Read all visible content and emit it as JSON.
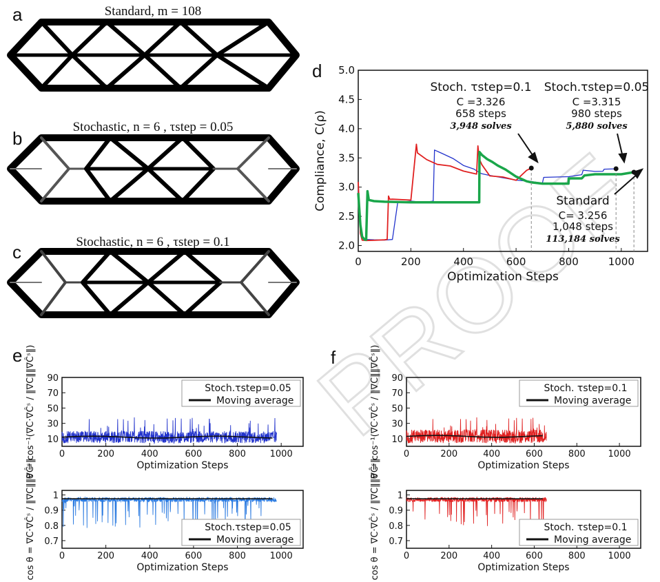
{
  "panel_labels": {
    "a": "a",
    "b": "b",
    "c": "c",
    "d": "d",
    "e": "e",
    "f": "f"
  },
  "titles": {
    "a": "Standard, m = 108",
    "b": "Stochastic, n = 6 , τstep = 0.05",
    "c": "Stochastic, n = 6 , τstep = 0.1"
  },
  "watermark": "PROOF",
  "annotations": {
    "tau01": {
      "head": "Stoch. τstep=0.1",
      "c": "C =3.326",
      "steps": "658 steps",
      "solves": "3,948 solves"
    },
    "tau005": {
      "head": "Stoch.τstep=0.05",
      "c": "C =3.315",
      "steps": "980 steps",
      "solves": "5,880 solves"
    },
    "standard": {
      "head": "Standard",
      "c": "C= 3.256",
      "steps": "1,048 steps",
      "solves": "113,184 solves"
    }
  },
  "colors": {
    "standard": "#1aa64a",
    "tau005": "#2233cc",
    "tau01": "#e02020",
    "tau005_light": "#2a7ae0",
    "avg": "#111111"
  },
  "chart_data": [
    {
      "type": "line",
      "id": "d",
      "xlabel": "Optimization Steps",
      "ylabel": "Compliance, C(ρ)",
      "xlim": [
        0,
        1100
      ],
      "ylim": [
        1.9,
        5.0
      ],
      "xticks": [
        0,
        200,
        400,
        600,
        800,
        1000
      ],
      "yticks": [
        2.0,
        2.5,
        3.0,
        3.5,
        4.0,
        4.5,
        5.0
      ],
      "series": [
        {
          "name": "Standard",
          "x": [
            0,
            8,
            15,
            25,
            30,
            35,
            40,
            60,
            100,
            200,
            300,
            400,
            460,
            461,
            470,
            490,
            510,
            530,
            560,
            600,
            640,
            660,
            700,
            760,
            799,
            800,
            850,
            860,
            900,
            1000,
            1048
          ],
          "y": [
            2.9,
            2.35,
            2.15,
            2.1,
            2.1,
            2.93,
            2.78,
            2.76,
            2.75,
            2.74,
            2.74,
            2.74,
            2.74,
            3.6,
            3.55,
            3.48,
            3.43,
            3.37,
            3.3,
            3.18,
            3.1,
            3.08,
            3.06,
            3.06,
            3.06,
            3.15,
            3.15,
            3.2,
            3.22,
            3.22,
            3.256
          ]
        },
        {
          "name": "Stoch. τstep=0.1",
          "x": [
            0,
            8,
            15,
            30,
            60,
            100,
            110,
            115,
            120,
            130,
            200,
            221,
            225,
            260,
            300,
            350,
            400,
            450,
            455,
            460,
            470,
            500,
            550,
            600,
            640,
            658
          ],
          "y": [
            3.1,
            2.2,
            2.1,
            2.1,
            2.1,
            2.1,
            2.1,
            2.85,
            2.78,
            2.78,
            2.78,
            3.72,
            3.6,
            3.48,
            3.4,
            3.35,
            3.28,
            3.22,
            3.72,
            3.5,
            3.38,
            3.2,
            3.16,
            3.12,
            3.3,
            3.326
          ]
        },
        {
          "name": "Stoch. τstep=0.05",
          "x": [
            0,
            8,
            15,
            30,
            60,
            100,
            130,
            150,
            200,
            250,
            285,
            290,
            320,
            360,
            400,
            440,
            460,
            470,
            500,
            600,
            650,
            700,
            705,
            800,
            850,
            855,
            900,
            930,
            935,
            980
          ],
          "y": [
            3.0,
            2.2,
            2.1,
            2.1,
            2.1,
            2.1,
            2.1,
            2.75,
            2.75,
            2.75,
            2.75,
            3.65,
            3.58,
            3.48,
            3.38,
            3.3,
            3.25,
            3.22,
            3.2,
            3.12,
            3.1,
            3.08,
            3.18,
            3.18,
            3.2,
            3.3,
            3.28,
            3.27,
            3.3,
            3.315
          ]
        }
      ],
      "markers": [
        {
          "x": 658,
          "y": 3.326
        },
        {
          "x": 980,
          "y": 3.315
        },
        {
          "x": 1048,
          "y": 3.256
        }
      ]
    },
    {
      "type": "line",
      "id": "e-top",
      "xlabel": "Optimization Steps",
      "ylabel": "θ = cos⁻¹(∇C·∇Ĉˢ / ‖∇C‖‖∇Ĉˢ‖)",
      "xlim": [
        0,
        1100
      ],
      "ylim": [
        0,
        90
      ],
      "xticks": [
        0,
        200,
        400,
        600,
        800,
        1000
      ],
      "yticks": [
        10,
        30,
        50,
        70,
        90
      ],
      "series": [
        {
          "name": "Stoch.τstep=0.05",
          "n": 980,
          "mean": 12,
          "spread": 8,
          "max": 38
        },
        {
          "name": "Moving average",
          "value": 12
        }
      ],
      "legend": [
        "Stoch.τstep=0.05",
        "Moving average"
      ],
      "legend_position": "top-right"
    },
    {
      "type": "line",
      "id": "e-bottom",
      "xlabel": "Optimization Steps",
      "ylabel": "cos θ = ∇C·∇Ĉˢ / ‖∇C‖‖∇Ĉˢ‖",
      "xlim": [
        0,
        1100
      ],
      "ylim": [
        0.65,
        1.03
      ],
      "xticks": [
        0,
        200,
        400,
        600,
        800,
        1000
      ],
      "yticks": [
        0.7,
        0.8,
        0.9,
        1
      ],
      "series": [
        {
          "name": "Stoch.τstep=0.05",
          "n": 980,
          "mean": 0.97,
          "min": 0.78
        },
        {
          "name": "Moving average",
          "value": 0.975
        }
      ],
      "legend": [
        "Stoch.τstep=0.05",
        "Moving average"
      ],
      "legend_position": "bottom-right"
    },
    {
      "type": "line",
      "id": "f-top",
      "xlabel": "Optimization Steps",
      "ylabel": "θ = cos⁻¹(∇C·∇Ĉˢ / ‖∇C‖‖∇Ĉˢ‖)",
      "xlim": [
        0,
        1100
      ],
      "ylim": [
        0,
        90
      ],
      "xticks": [
        0,
        200,
        400,
        600,
        800,
        1000
      ],
      "yticks": [
        10,
        30,
        50,
        70,
        90
      ],
      "series": [
        {
          "name": "Stoch. τstep=0.1",
          "n": 658,
          "mean": 13,
          "spread": 9,
          "max": 38
        },
        {
          "name": "Moving average",
          "value": 13
        }
      ],
      "legend": [
        "Stoch. τstep=0.1",
        "Moving average"
      ],
      "legend_position": "top-right"
    },
    {
      "type": "line",
      "id": "f-bottom",
      "xlabel": "Optimization Steps",
      "ylabel": "cos θ = ∇C·∇Ĉˢ / ‖∇C‖‖∇Ĉˢ‖",
      "xlim": [
        0,
        1100
      ],
      "ylim": [
        0.65,
        1.03
      ],
      "xticks": [
        0,
        200,
        400,
        600,
        800,
        1000
      ],
      "yticks": [
        0.7,
        0.8,
        0.9,
        1
      ],
      "series": [
        {
          "name": "Stoch. τstep=0.1",
          "n": 658,
          "mean": 0.97,
          "min": 0.79
        },
        {
          "name": "Moving average",
          "value": 0.975
        }
      ],
      "legend": [
        "Stoch. τstep=0.1",
        "Moving average"
      ],
      "legend_position": "bottom-right"
    }
  ]
}
